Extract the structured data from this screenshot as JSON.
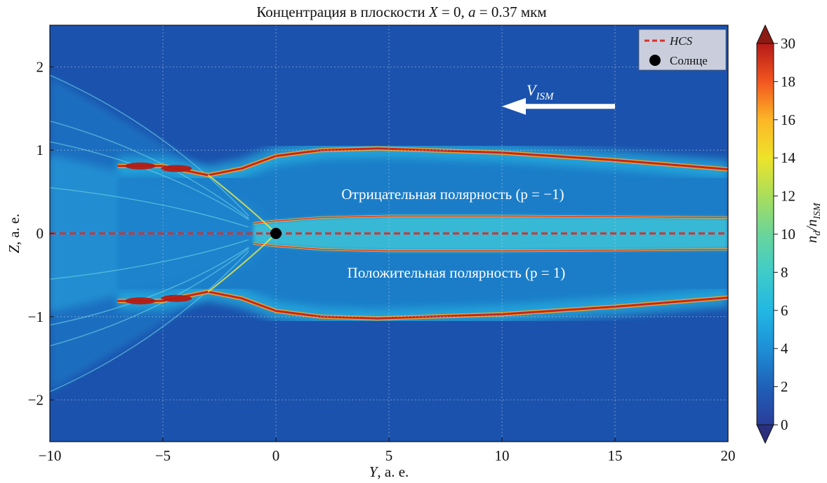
{
  "chart_data": {
    "type": "heatmap",
    "title": {
      "prefix": "Концентрация в плоскости ",
      "var1": "X",
      "mid": " = 0, ",
      "var2": "a",
      "suffix": " = 0.37 мкм"
    },
    "xlabel": {
      "var": "Y",
      "unit": ", а. е."
    },
    "ylabel": {
      "var": "Z",
      "unit": ", а. е."
    },
    "xlim": [
      -10,
      20
    ],
    "ylim": [
      -2.5,
      2.5
    ],
    "x_ticks": [
      -10,
      -5,
      0,
      5,
      10,
      15,
      20
    ],
    "x_tick_labels": [
      "−10",
      "−5",
      "0",
      "5",
      "10",
      "15",
      "20"
    ],
    "y_ticks": [
      2,
      1,
      0,
      -1,
      -2
    ],
    "y_tick_labels": [
      "2",
      "1",
      "0",
      "−1",
      "−2"
    ],
    "grid": true,
    "colorbar": {
      "label_main": "n",
      "label_sub1": "d",
      "label_sep": "/n",
      "label_sub2": "ISM",
      "ticks": [
        "0",
        "2",
        "4",
        "6",
        "8",
        "10",
        "12",
        "14",
        "16",
        "18",
        "30"
      ],
      "extend": "both",
      "colors": [
        "#2a3d9a",
        "#1f60b8",
        "#1e8fd6",
        "#22b7e3",
        "#3fccc9",
        "#6ad59a",
        "#a9de5c",
        "#eee32a",
        "#fcb627",
        "#f2561f",
        "#b41a18"
      ]
    },
    "legend": {
      "placement": "top-right",
      "entries": [
        {
          "label": "HCS",
          "marker": "dashed-line",
          "color": "#d7302b"
        },
        {
          "label": "Солнце",
          "marker": "circle",
          "color": "#000000"
        }
      ]
    },
    "annotations": {
      "flow_label_main": "V",
      "flow_label_sub": "ISM",
      "flow_arrow_from": [
        15,
        1.5
      ],
      "flow_arrow_to": [
        10,
        1.5
      ],
      "negative_region": "Отрицательная полярность (p = −1)",
      "positive_region": "Положительная полярность (p = 1)"
    },
    "hcs": {
      "y": [
        -10,
        20
      ],
      "z": 0
    },
    "sun": {
      "y": 0,
      "z": 0
    },
    "structures": {
      "upper_boundary": {
        "y": [
          -7,
          -5,
          -4.5,
          -3,
          -1.5,
          0,
          2,
          4.5,
          10,
          15,
          20
        ],
        "z": [
          0.81,
          0.81,
          0.78,
          0.7,
          0.78,
          0.93,
          1.0,
          1.02,
          0.97,
          0.88,
          0.77
        ]
      },
      "lower_boundary": {
        "y": [
          -7,
          -5,
          -4.5,
          -3,
          -1.5,
          0,
          2,
          4.5,
          10,
          15,
          20
        ],
        "z": [
          -0.81,
          -0.81,
          -0.78,
          -0.7,
          -0.78,
          -0.93,
          -1.0,
          -1.02,
          -0.97,
          -0.88,
          -0.77
        ]
      },
      "inner_upper": {
        "y": [
          -1,
          0,
          2,
          5,
          10,
          15,
          20
        ],
        "z": [
          0.12,
          0.15,
          0.19,
          0.21,
          0.21,
          0.2,
          0.19
        ]
      },
      "inner_lower": {
        "y": [
          -1,
          0,
          2,
          5,
          10,
          15,
          20
        ],
        "z": [
          -0.12,
          -0.15,
          -0.19,
          -0.21,
          -0.21,
          -0.2,
          -0.19
        ]
      }
    }
  }
}
